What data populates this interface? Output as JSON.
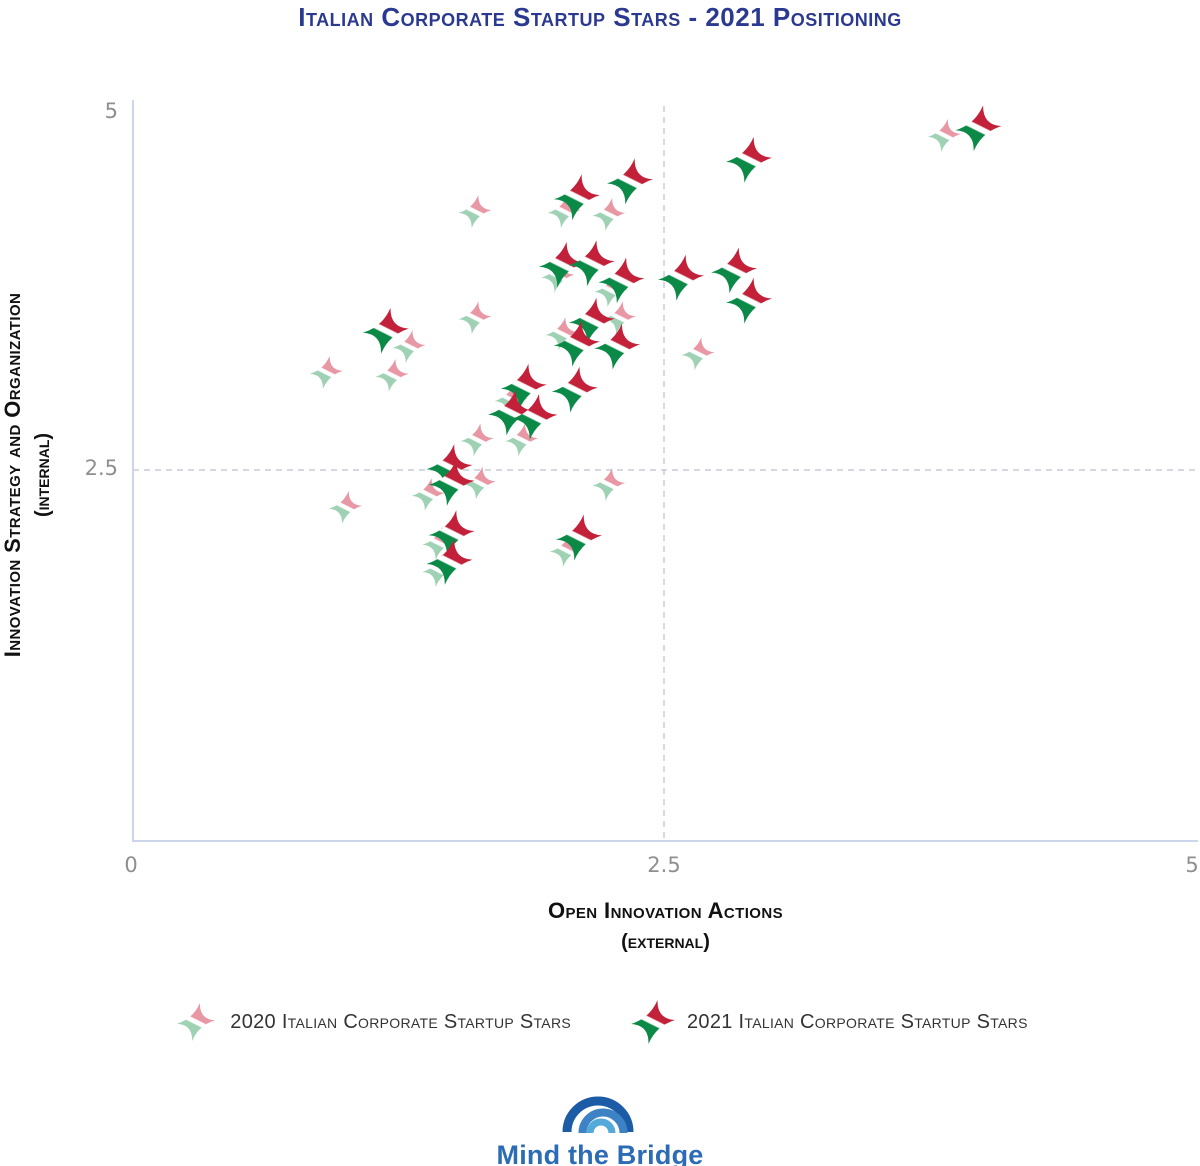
{
  "title": "Italian Corporate Startup Stars - 2021 Positioning",
  "axes": {
    "x": {
      "title_line1": "Open Innovation Actions",
      "title_line2": "(external)",
      "ticks": [
        "0",
        "2.5",
        "5"
      ]
    },
    "y": {
      "title_line1": "Innovation Strategy and Organization",
      "title_line2": "(internal)",
      "ticks": [
        "5",
        "2.5"
      ]
    }
  },
  "chart_data": {
    "type": "scatter",
    "title": "Italian Corporate Startup Stars - 2021 Positioning",
    "xlabel": "Open Innovation Actions (External)",
    "ylabel": "Innovation Strategy and Organization (Internal)",
    "xlim": [
      0,
      5
    ],
    "ylim": [
      0,
      5
    ],
    "reference_lines": {
      "x": 2.5,
      "y": 2.5,
      "style": "dashed"
    },
    "legend_position": "bottom",
    "series": [
      {
        "id": "2020",
        "name": "2020 Italian Corporate Startup Stars",
        "marker": "four-point-star-pale-flag",
        "size": 33,
        "legend_size": 38,
        "colors": {
          "upper": "#E898A4",
          "band": "#FFFFFF",
          "lower": "#9FD2B4"
        },
        "points": [
          [
            3.82,
            4.83
          ],
          [
            2.03,
            4.3
          ],
          [
            2.24,
            4.28
          ],
          [
            1.61,
            4.3
          ],
          [
            2.0,
            3.85
          ],
          [
            2.25,
            3.75
          ],
          [
            2.29,
            3.56
          ],
          [
            2.02,
            3.45
          ],
          [
            1.61,
            3.56
          ],
          [
            2.66,
            3.31
          ],
          [
            1.3,
            3.36
          ],
          [
            0.91,
            3.18
          ],
          [
            1.22,
            3.16
          ],
          [
            1.78,
            2.99
          ],
          [
            1.83,
            2.71
          ],
          [
            1.62,
            2.71
          ],
          [
            1.39,
            2.33
          ],
          [
            1.63,
            2.41
          ],
          [
            2.24,
            2.4
          ],
          [
            1.0,
            2.24
          ],
          [
            1.44,
            1.99
          ],
          [
            1.44,
            1.8
          ],
          [
            2.04,
            1.94
          ]
        ]
      },
      {
        "id": "2021",
        "name": "2021 Italian Corporate Startup Stars",
        "marker": "four-point-star-italian-flag",
        "size": 46,
        "legend_size": 44,
        "colors": {
          "upper": "#C22139",
          "band": "#FFFFFF",
          "lower": "#0B8A47"
        },
        "points": [
          [
            3.98,
            4.88
          ],
          [
            2.9,
            4.66
          ],
          [
            2.34,
            4.51
          ],
          [
            2.09,
            4.4
          ],
          [
            2.02,
            3.93
          ],
          [
            2.16,
            3.94
          ],
          [
            2.3,
            3.82
          ],
          [
            2.58,
            3.84
          ],
          [
            2.83,
            3.89
          ],
          [
            2.9,
            3.68
          ],
          [
            1.19,
            3.47
          ],
          [
            2.16,
            3.54
          ],
          [
            2.09,
            3.38
          ],
          [
            2.28,
            3.36
          ],
          [
            1.84,
            3.08
          ],
          [
            2.08,
            3.06
          ],
          [
            1.78,
            2.9
          ],
          [
            1.89,
            2.87
          ],
          [
            1.49,
            2.52
          ],
          [
            1.5,
            2.41
          ],
          [
            1.5,
            2.06
          ],
          [
            1.49,
            1.86
          ],
          [
            2.1,
            2.03
          ]
        ]
      }
    ]
  },
  "legend": {
    "items": [
      {
        "series_id": "2020",
        "label": "2020 Italian Corporate Startup Stars"
      },
      {
        "series_id": "2021",
        "label": "2021 Italian Corporate Startup Stars"
      }
    ]
  },
  "logo": {
    "text": "Mind the Bridge"
  },
  "colors": {
    "title_navy": "#2B3990",
    "axis_line": "#CDD5EC",
    "grid_dash": "#C6CBD8",
    "tick_text": "#8F8F8F",
    "axis_title_text": "#111111",
    "legend_text": "#333333",
    "logo_arc_outer": "#1C5CA7",
    "logo_arc_middle": "#3C82C4",
    "logo_arc_inner": "#54A9DB",
    "logo_text_blue": "#2B6CB5"
  }
}
